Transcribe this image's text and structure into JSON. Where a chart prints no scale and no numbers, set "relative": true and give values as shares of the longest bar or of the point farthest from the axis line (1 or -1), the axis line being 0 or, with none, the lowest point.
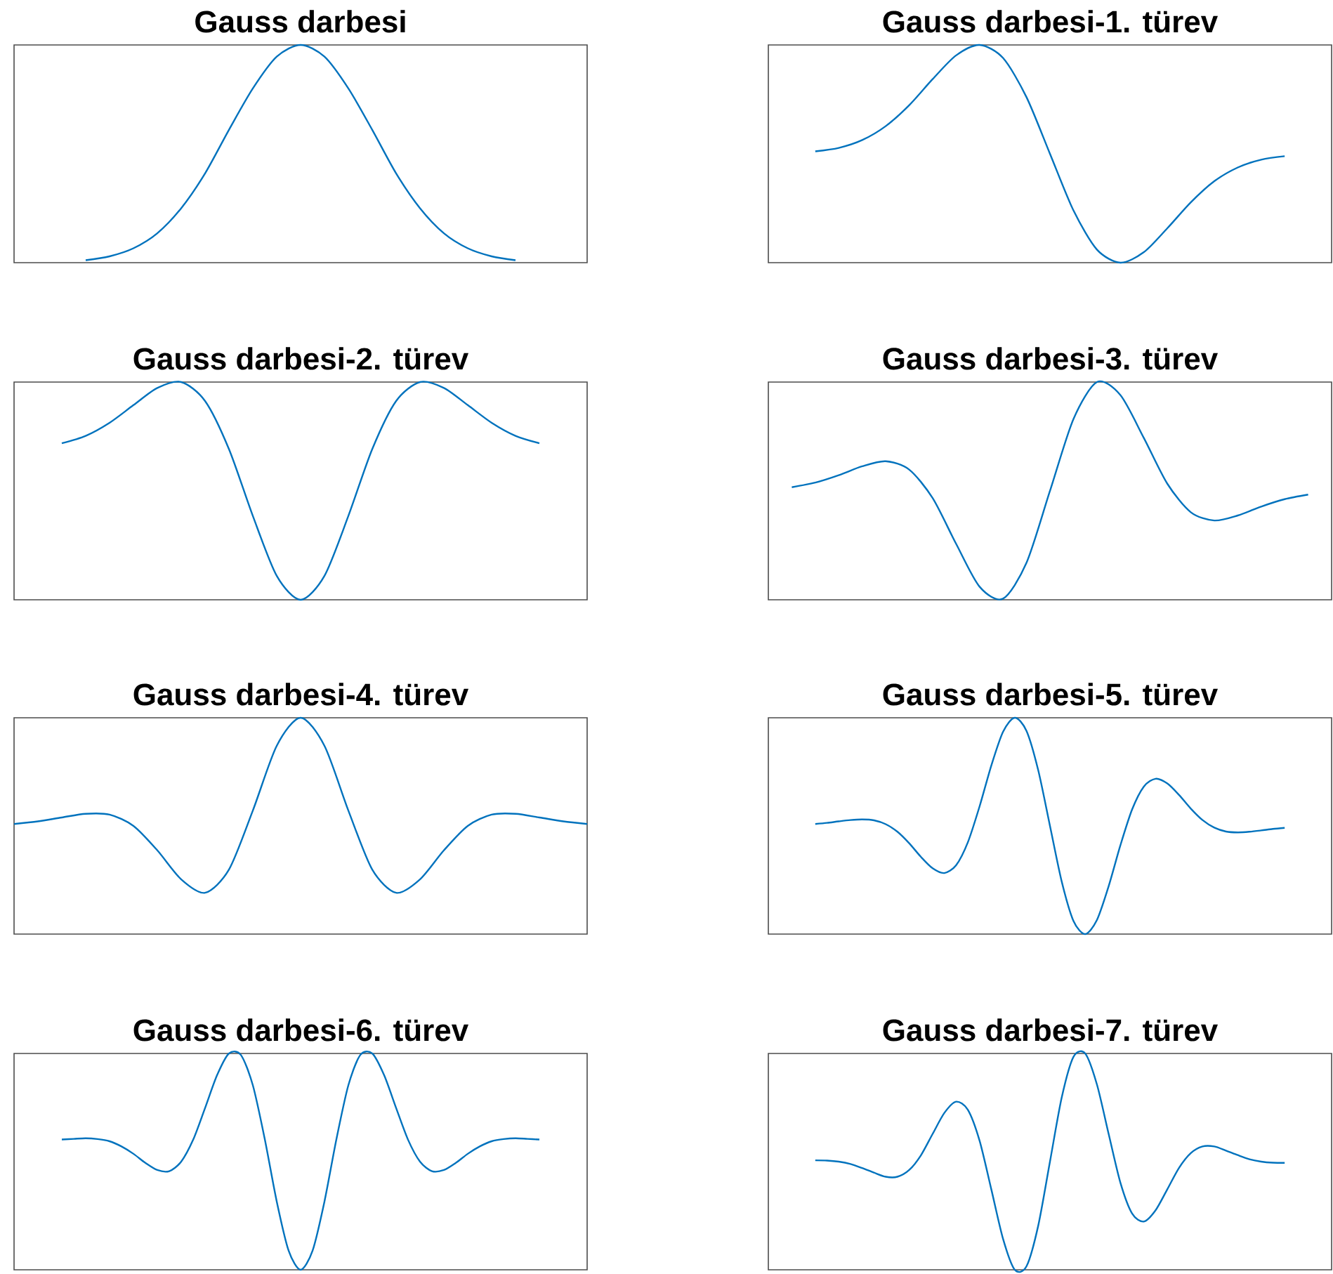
{
  "chart_data": [
    {
      "type": "line",
      "title": "Gauss darbesi",
      "relative": true,
      "color": "#0072bd",
      "categories": [
        null,
        null,
        null,
        null,
        null,
        null,
        null,
        null,
        null,
        null,
        null,
        null,
        null,
        null,
        null,
        null,
        null,
        null,
        null,
        null,
        null,
        null,
        null,
        null,
        null
      ],
      "values": [
        null,
        null,
        null,
        0.011,
        0.029,
        0.066,
        0.135,
        0.25,
        0.41,
        0.61,
        0.8,
        0.946,
        1,
        0.946,
        0.8,
        0.61,
        0.41,
        0.25,
        0.135,
        0.066,
        0.029,
        0.011,
        null,
        null,
        null
      ]
    },
    {
      "type": "line",
      "title": "Gauss darbesi-1. türev",
      "relative": true,
      "color": "#0072bd",
      "categories": [
        null,
        null,
        null,
        null,
        null,
        null,
        null,
        null,
        null,
        null,
        null,
        null,
        null,
        null,
        null,
        null,
        null,
        null,
        null,
        null,
        null,
        null,
        null,
        null,
        null
      ],
      "values": [
        null,
        null,
        0.511,
        0.527,
        0.563,
        0.627,
        0.723,
        0.843,
        0.952,
        1,
        0.94,
        0.76,
        0.5,
        0.24,
        0.06,
        0,
        0.048,
        0.158,
        0.277,
        0.374,
        0.437,
        0.473,
        0.489,
        null,
        null
      ]
    },
    {
      "type": "line",
      "title": "Gauss darbesi-2. türev",
      "relative": true,
      "color": "#0072bd",
      "categories": [
        null,
        null,
        null,
        null,
        null,
        null,
        null,
        null,
        null,
        null,
        null,
        null,
        null,
        null,
        null,
        null,
        null,
        null,
        null,
        null,
        null,
        null,
        null,
        null,
        null
      ],
      "values": [
        null,
        null,
        0.719,
        0.753,
        0.813,
        0.894,
        0.973,
        1,
        0.913,
        0.692,
        0.385,
        0.11,
        0,
        0.11,
        0.385,
        0.692,
        0.913,
        1,
        0.973,
        0.894,
        0.813,
        0.753,
        0.719,
        null,
        null
      ]
    },
    {
      "type": "line",
      "title": "Gauss darbesi-3. türev",
      "relative": true,
      "color": "#0072bd",
      "categories": [
        null,
        null,
        null,
        null,
        null,
        null,
        null,
        null,
        null,
        null,
        null,
        null,
        null,
        null,
        null,
        null,
        null,
        null,
        null,
        null,
        null,
        null,
        null,
        null,
        null
      ],
      "values": [
        null,
        0.517,
        0.538,
        0.572,
        0.613,
        0.636,
        0.598,
        0.467,
        0.257,
        0.06,
        0.005,
        0.17,
        0.5,
        0.83,
        1,
        0.94,
        0.743,
        0.533,
        0.402,
        0.364,
        0.387,
        0.428,
        0.462,
        0.483,
        null
      ]
    },
    {
      "type": "line",
      "title": "Gauss darbesi-4. türev",
      "relative": true,
      "color": "#0072bd",
      "categories": [
        null,
        null,
        null,
        null,
        null,
        null,
        null,
        null,
        null,
        null,
        null,
        null,
        null,
        null,
        null,
        null,
        null,
        null,
        null,
        null,
        null,
        null,
        null,
        null,
        null
      ],
      "values": [
        0.509,
        0.521,
        0.539,
        0.556,
        0.552,
        0.5,
        0.387,
        0.253,
        0.191,
        0.298,
        0.571,
        0.87,
        1,
        0.87,
        0.571,
        0.298,
        0.191,
        0.253,
        0.387,
        0.5,
        0.552,
        0.556,
        0.539,
        0.521,
        0.509
      ]
    },
    {
      "type": "line",
      "title": "Gauss darbesi-5. türev",
      "relative": true,
      "color": "#0072bd",
      "categories": [
        null,
        null,
        null,
        null,
        null,
        null,
        null,
        null,
        null,
        null,
        null,
        null,
        null,
        null,
        null,
        null,
        null,
        null,
        null,
        null,
        null,
        null,
        null,
        null,
        null,
        null,
        null,
        null,
        null,
        null,
        null,
        null,
        null,
        null,
        null,
        null,
        null,
        null,
        null,
        null,
        null,
        null,
        null,
        null,
        null,
        null,
        null,
        null,
        null
      ],
      "values": [
        null,
        null,
        null,
        null,
        0.509,
        0.514,
        0.521,
        0.527,
        0.53,
        0.526,
        0.508,
        0.473,
        0.42,
        0.357,
        0.304,
        0.282,
        0.318,
        0.424,
        0.59,
        0.779,
        0.935,
        1,
        0.939,
        0.757,
        0.5,
        0.243,
        0.061,
        0,
        0.065,
        0.221,
        0.41,
        0.576,
        0.682,
        0.718,
        0.696,
        0.643,
        0.58,
        0.527,
        0.492,
        0.474,
        0.47,
        0.473,
        0.479,
        0.486,
        0.491,
        null,
        null,
        null,
        null
      ]
    },
    {
      "type": "line",
      "title": "Gauss darbesi-6. türev",
      "relative": true,
      "color": "#0072bd",
      "categories": [
        null,
        null,
        null,
        null,
        null,
        null,
        null,
        null,
        null,
        null,
        null,
        null,
        null,
        null,
        null,
        null,
        null,
        null,
        null,
        null,
        null,
        null,
        null,
        null,
        null,
        null,
        null,
        null,
        null,
        null,
        null,
        null,
        null,
        null,
        null,
        null,
        null,
        null,
        null,
        null,
        null,
        null,
        null,
        null,
        null,
        null,
        null,
        null,
        null
      ],
      "values": [
        null,
        null,
        null,
        null,
        0.602,
        0.605,
        0.608,
        0.604,
        0.594,
        0.57,
        0.536,
        0.494,
        0.461,
        0.456,
        0.5,
        0.601,
        0.748,
        0.899,
        1,
        0.993,
        0.853,
        0.604,
        0.316,
        0.088,
        0,
        0.088,
        0.316,
        0.604,
        0.853,
        0.993,
        1,
        0.899,
        0.748,
        0.601,
        0.5,
        0.456,
        0.461,
        0.494,
        0.536,
        0.57,
        0.594,
        0.604,
        0.608,
        0.605,
        0.602,
        null,
        null,
        null,
        null
      ]
    },
    {
      "type": "line",
      "title": "Gauss darbesi-7. türev",
      "relative": true,
      "color": "#0072bd",
      "categories": [
        null,
        null,
        null,
        null,
        null,
        null,
        null,
        null,
        null,
        null,
        null,
        null,
        null,
        null,
        null,
        null,
        null,
        null,
        null,
        null,
        null,
        null,
        null,
        null,
        null,
        null,
        null,
        null,
        null,
        null,
        null,
        null,
        null,
        null,
        null,
        null,
        null,
        null,
        null,
        null,
        null,
        null,
        null,
        null,
        null,
        null,
        null,
        null,
        null
      ],
      "values": [
        null,
        null,
        null,
        null,
        0.506,
        0.505,
        0.5,
        0.489,
        0.47,
        0.449,
        0.43,
        0.43,
        0.461,
        0.529,
        0.628,
        0.725,
        0.777,
        0.74,
        0.597,
        0.372,
        0.143,
        0,
        0.016,
        0.204,
        0.5,
        0.796,
        0.984,
        1,
        0.857,
        0.628,
        0.403,
        0.26,
        0.223,
        0.275,
        0.372,
        0.471,
        0.539,
        0.57,
        0.57,
        0.551,
        0.53,
        0.511,
        0.5,
        0.495,
        0.494,
        null,
        null,
        null,
        null
      ]
    }
  ]
}
